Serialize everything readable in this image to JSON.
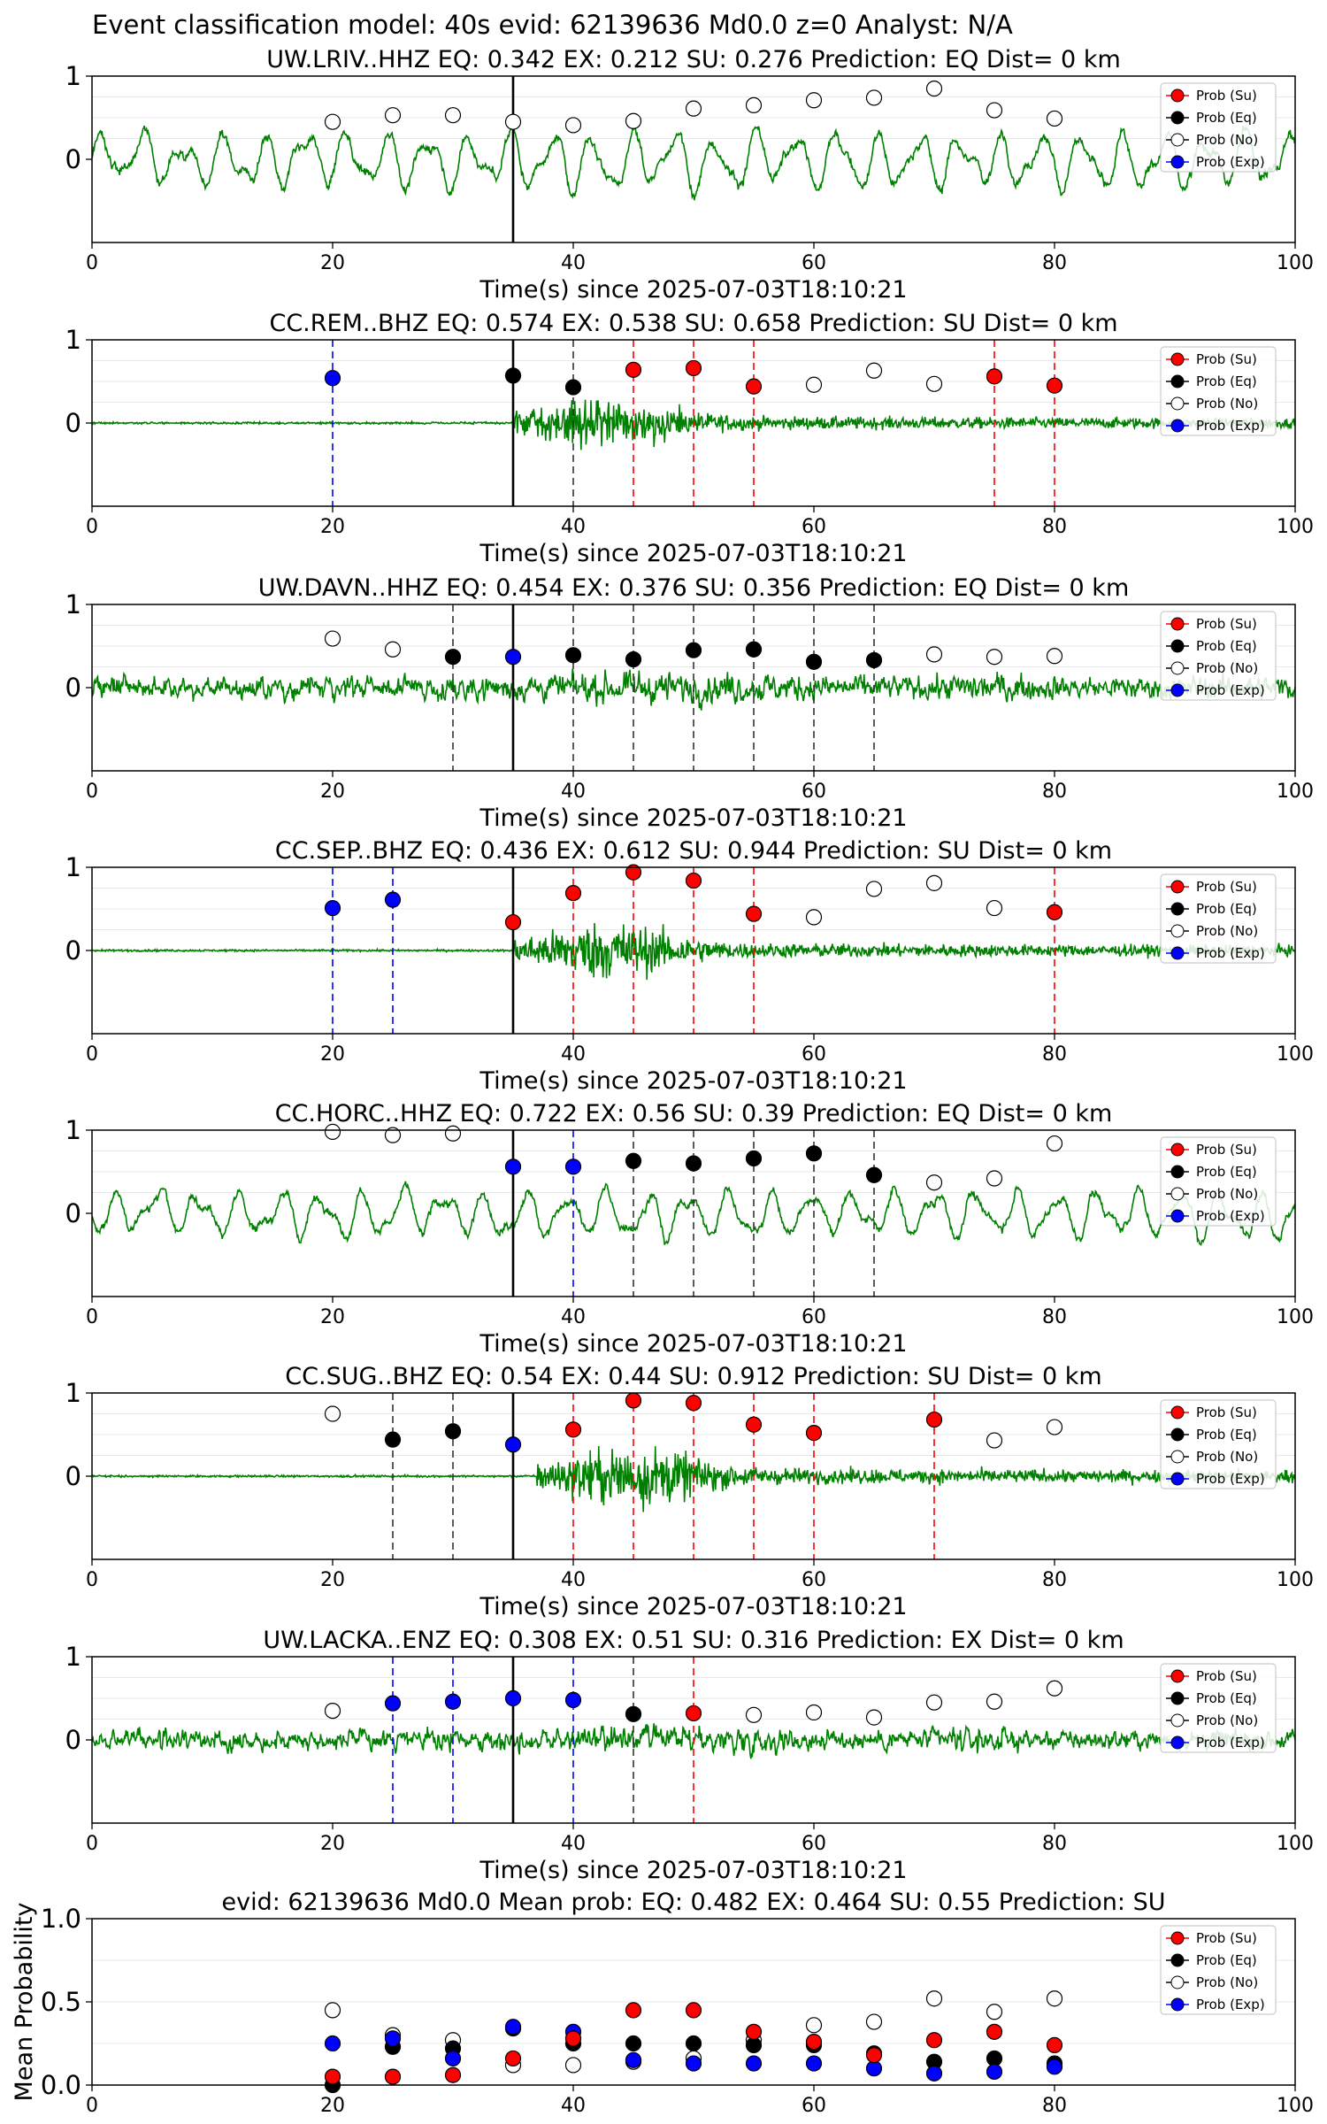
{
  "suptitle": "Event classification model: 40s evid: 62139636 Md0.0 z=0 Analyst: N/A",
  "legend": [
    {
      "label": "Prob (Su)",
      "fill": "#ff0000",
      "line": "#ff0000"
    },
    {
      "label": "Prob (Eq)",
      "fill": "#000000",
      "line": "#000000"
    },
    {
      "label": "Prob (No)",
      "fill": "#ffffff",
      "line": "#000000"
    },
    {
      "label": "Prob (Exp)",
      "fill": "#0000ff",
      "line": "#0000ff"
    }
  ],
  "colors": {
    "su": "#ff0000",
    "eq": "#000000",
    "no": "#ffffff",
    "exp": "#0000ff",
    "waveform": "#008000",
    "grid": "#e8e8e8"
  },
  "chart_data": [
    {
      "type": "scatter",
      "title": "UW.LRIV..HHZ   EQ: 0.342  EX: 0.212  SU: 0.276   Prediction: EQ    Dist= 0 km",
      "xlabel": "Time(s) since 2025-07-03T18:10:21",
      "xlim": [
        0,
        100
      ],
      "ylim": [
        -1,
        1
      ],
      "xticks": [
        "0",
        "20",
        "40",
        "60",
        "80",
        "100"
      ],
      "yticks": [
        "0",
        "1"
      ],
      "waveform": {
        "style": "smooth",
        "amp": 0.45,
        "onset": 0
      },
      "pick_time": 35,
      "points": [
        {
          "t": 20,
          "p": 0.45,
          "c": "no"
        },
        {
          "t": 25,
          "p": 0.53,
          "c": "no"
        },
        {
          "t": 30,
          "p": 0.53,
          "c": "no"
        },
        {
          "t": 35,
          "p": 0.45,
          "c": "no"
        },
        {
          "t": 40,
          "p": 0.41,
          "c": "no"
        },
        {
          "t": 45,
          "p": 0.46,
          "c": "no"
        },
        {
          "t": 50,
          "p": 0.61,
          "c": "no"
        },
        {
          "t": 55,
          "p": 0.65,
          "c": "no"
        },
        {
          "t": 60,
          "p": 0.71,
          "c": "no"
        },
        {
          "t": 65,
          "p": 0.74,
          "c": "no"
        },
        {
          "t": 70,
          "p": 0.85,
          "c": "no"
        },
        {
          "t": 75,
          "p": 0.59,
          "c": "no"
        },
        {
          "t": 80,
          "p": 0.49,
          "c": "no"
        }
      ]
    },
    {
      "type": "scatter",
      "title": "CC.REM..BHZ   EQ: 0.574  EX: 0.538  SU: 0.658   Prediction: SU    Dist= 0 km",
      "xlabel": "Time(s) since 2025-07-03T18:10:21",
      "xlim": [
        0,
        100
      ],
      "ylim": [
        -1,
        1
      ],
      "xticks": [
        "0",
        "20",
        "40",
        "60",
        "80",
        "100"
      ],
      "yticks": [
        "0",
        "1"
      ],
      "waveform": {
        "style": "burst",
        "amp": 0.6,
        "onset": 35
      },
      "pick_time": 35,
      "points": [
        {
          "t": 20,
          "p": 0.54,
          "c": "exp"
        },
        {
          "t": 35,
          "p": 0.57,
          "c": "eq"
        },
        {
          "t": 40,
          "p": 0.43,
          "c": "eq"
        },
        {
          "t": 45,
          "p": 0.64,
          "c": "su"
        },
        {
          "t": 50,
          "p": 0.66,
          "c": "su"
        },
        {
          "t": 55,
          "p": 0.44,
          "c": "su"
        },
        {
          "t": 60,
          "p": 0.46,
          "c": "no"
        },
        {
          "t": 65,
          "p": 0.63,
          "c": "no"
        },
        {
          "t": 70,
          "p": 0.47,
          "c": "no"
        },
        {
          "t": 75,
          "p": 0.56,
          "c": "su"
        },
        {
          "t": 80,
          "p": 0.45,
          "c": "su"
        }
      ]
    },
    {
      "type": "scatter",
      "title": "UW.DAVN..HHZ   EQ: 0.454  EX: 0.376  SU: 0.356   Prediction: EQ    Dist= 0 km",
      "xlabel": "Time(s) since 2025-07-03T18:10:21",
      "xlim": [
        0,
        100
      ],
      "ylim": [
        -1,
        1
      ],
      "xticks": [
        "0",
        "20",
        "40",
        "60",
        "80",
        "100"
      ],
      "yticks": [
        "0",
        "1"
      ],
      "waveform": {
        "style": "noisy",
        "amp": 0.35,
        "onset": 0
      },
      "pick_time": 35,
      "points": [
        {
          "t": 20,
          "p": 0.59,
          "c": "no"
        },
        {
          "t": 25,
          "p": 0.46,
          "c": "no"
        },
        {
          "t": 30,
          "p": 0.37,
          "c": "eq"
        },
        {
          "t": 35,
          "p": 0.37,
          "c": "exp"
        },
        {
          "t": 40,
          "p": 0.39,
          "c": "eq"
        },
        {
          "t": 45,
          "p": 0.34,
          "c": "eq"
        },
        {
          "t": 50,
          "p": 0.45,
          "c": "eq"
        },
        {
          "t": 55,
          "p": 0.46,
          "c": "eq"
        },
        {
          "t": 60,
          "p": 0.31,
          "c": "eq"
        },
        {
          "t": 65,
          "p": 0.33,
          "c": "eq"
        },
        {
          "t": 70,
          "p": 0.4,
          "c": "no"
        },
        {
          "t": 75,
          "p": 0.37,
          "c": "no"
        },
        {
          "t": 80,
          "p": 0.38,
          "c": "no"
        }
      ]
    },
    {
      "type": "scatter",
      "title": "CC.SEP..BHZ   EQ: 0.436  EX: 0.612  SU: 0.944   Prediction: SU    Dist= 0 km",
      "xlabel": "Time(s) since 2025-07-03T18:10:21",
      "xlim": [
        0,
        100
      ],
      "ylim": [
        -1,
        1
      ],
      "xticks": [
        "0",
        "20",
        "40",
        "60",
        "80",
        "100"
      ],
      "yticks": [
        "0",
        "1"
      ],
      "waveform": {
        "style": "burst",
        "amp": 0.65,
        "onset": 35
      },
      "pick_time": 35,
      "points": [
        {
          "t": 20,
          "p": 0.51,
          "c": "exp"
        },
        {
          "t": 25,
          "p": 0.61,
          "c": "exp"
        },
        {
          "t": 35,
          "p": 0.34,
          "c": "su"
        },
        {
          "t": 40,
          "p": 0.69,
          "c": "su"
        },
        {
          "t": 45,
          "p": 0.94,
          "c": "su"
        },
        {
          "t": 50,
          "p": 0.84,
          "c": "su"
        },
        {
          "t": 55,
          "p": 0.44,
          "c": "su"
        },
        {
          "t": 60,
          "p": 0.4,
          "c": "no"
        },
        {
          "t": 65,
          "p": 0.74,
          "c": "no"
        },
        {
          "t": 70,
          "p": 0.81,
          "c": "no"
        },
        {
          "t": 75,
          "p": 0.51,
          "c": "no"
        },
        {
          "t": 80,
          "p": 0.46,
          "c": "su"
        }
      ]
    },
    {
      "type": "scatter",
      "title": "CC.HORC..HHZ   EQ: 0.722  EX: 0.56  SU: 0.39   Prediction: EQ    Dist= 0 km",
      "xlabel": "Time(s) since 2025-07-03T18:10:21",
      "xlim": [
        0,
        100
      ],
      "ylim": [
        -1,
        1
      ],
      "xticks": [
        "0",
        "20",
        "40",
        "60",
        "80",
        "100"
      ],
      "yticks": [
        "0",
        "1"
      ],
      "waveform": {
        "style": "smooth",
        "amp": 0.38,
        "onset": 0
      },
      "pick_time": 35,
      "points": [
        {
          "t": 20,
          "p": 0.98,
          "c": "no"
        },
        {
          "t": 25,
          "p": 0.94,
          "c": "no"
        },
        {
          "t": 30,
          "p": 0.96,
          "c": "no"
        },
        {
          "t": 35,
          "p": 0.56,
          "c": "exp"
        },
        {
          "t": 40,
          "p": 0.56,
          "c": "exp"
        },
        {
          "t": 45,
          "p": 0.63,
          "c": "eq"
        },
        {
          "t": 50,
          "p": 0.6,
          "c": "eq"
        },
        {
          "t": 55,
          "p": 0.66,
          "c": "eq"
        },
        {
          "t": 60,
          "p": 0.72,
          "c": "eq"
        },
        {
          "t": 65,
          "p": 0.46,
          "c": "eq"
        },
        {
          "t": 70,
          "p": 0.37,
          "c": "no"
        },
        {
          "t": 75,
          "p": 0.42,
          "c": "no"
        },
        {
          "t": 80,
          "p": 0.84,
          "c": "no"
        }
      ]
    },
    {
      "type": "scatter",
      "title": "CC.SUG..BHZ   EQ: 0.54  EX: 0.44  SU: 0.912   Prediction: SU    Dist= 0 km",
      "xlabel": "Time(s) since 2025-07-03T18:10:21",
      "xlim": [
        0,
        100
      ],
      "ylim": [
        -1,
        1
      ],
      "xticks": [
        "0",
        "20",
        "40",
        "60",
        "80",
        "100"
      ],
      "yticks": [
        "0",
        "1"
      ],
      "waveform": {
        "style": "burst",
        "amp": 0.7,
        "onset": 37
      },
      "pick_time": 35,
      "points": [
        {
          "t": 20,
          "p": 0.75,
          "c": "no"
        },
        {
          "t": 25,
          "p": 0.44,
          "c": "eq"
        },
        {
          "t": 30,
          "p": 0.54,
          "c": "eq"
        },
        {
          "t": 35,
          "p": 0.38,
          "c": "exp"
        },
        {
          "t": 40,
          "p": 0.56,
          "c": "su"
        },
        {
          "t": 45,
          "p": 0.91,
          "c": "su"
        },
        {
          "t": 50,
          "p": 0.88,
          "c": "su"
        },
        {
          "t": 55,
          "p": 0.62,
          "c": "su"
        },
        {
          "t": 60,
          "p": 0.52,
          "c": "su"
        },
        {
          "t": 70,
          "p": 0.68,
          "c": "su"
        },
        {
          "t": 75,
          "p": 0.43,
          "c": "no"
        },
        {
          "t": 80,
          "p": 0.59,
          "c": "no"
        }
      ]
    },
    {
      "type": "scatter",
      "title": "UW.LACKA..ENZ   EQ: 0.308  EX: 0.51  SU: 0.316   Prediction: EX    Dist= 0 km",
      "xlabel": "Time(s) since 2025-07-03T18:10:21",
      "xlim": [
        0,
        100
      ],
      "ylim": [
        -1,
        1
      ],
      "xticks": [
        "0",
        "20",
        "40",
        "60",
        "80",
        "100"
      ],
      "yticks": [
        "0",
        "1"
      ],
      "waveform": {
        "style": "noisy",
        "amp": 0.3,
        "onset": 0
      },
      "pick_time": 35,
      "points": [
        {
          "t": 20,
          "p": 0.35,
          "c": "no"
        },
        {
          "t": 25,
          "p": 0.44,
          "c": "exp"
        },
        {
          "t": 30,
          "p": 0.46,
          "c": "exp"
        },
        {
          "t": 35,
          "p": 0.5,
          "c": "exp"
        },
        {
          "t": 40,
          "p": 0.48,
          "c": "exp"
        },
        {
          "t": 45,
          "p": 0.31,
          "c": "eq"
        },
        {
          "t": 50,
          "p": 0.32,
          "c": "su"
        },
        {
          "t": 55,
          "p": 0.3,
          "c": "no"
        },
        {
          "t": 60,
          "p": 0.33,
          "c": "no"
        },
        {
          "t": 65,
          "p": 0.27,
          "c": "no"
        },
        {
          "t": 70,
          "p": 0.45,
          "c": "no"
        },
        {
          "t": 75,
          "p": 0.46,
          "c": "no"
        },
        {
          "t": 80,
          "p": 0.62,
          "c": "no"
        }
      ]
    },
    {
      "type": "scatter",
      "title": "evid: 62139636  Md0.0   Mean prob:   EQ: 0.482  EX: 0.464  SU: 0.55   Prediction: SU",
      "xlabel": "",
      "ylabel": "Mean Probability",
      "xlim": [
        0,
        100
      ],
      "ylim": [
        0,
        1
      ],
      "xticks": [
        "0",
        "20",
        "40",
        "60",
        "80",
        "100"
      ],
      "yticks": [
        "0.0",
        "0.5",
        "1.0"
      ],
      "x": [
        20,
        25,
        30,
        35,
        40,
        45,
        50,
        55,
        60,
        65,
        70,
        75,
        80
      ],
      "series": [
        {
          "key": "no",
          "values": [
            0.45,
            0.3,
            0.27,
            0.12,
            0.12,
            0.14,
            0.16,
            0.27,
            0.36,
            0.38,
            0.52,
            0.44,
            0.52
          ]
        },
        {
          "key": "eq",
          "values": [
            0.0,
            0.23,
            0.22,
            0.34,
            0.25,
            0.25,
            0.25,
            0.24,
            0.24,
            0.19,
            0.14,
            0.16,
            0.13
          ]
        },
        {
          "key": "exp",
          "values": [
            0.25,
            0.28,
            0.16,
            0.35,
            0.32,
            0.15,
            0.13,
            0.13,
            0.13,
            0.1,
            0.07,
            0.08,
            0.11
          ]
        },
        {
          "key": "su",
          "values": [
            0.05,
            0.05,
            0.06,
            0.16,
            0.28,
            0.45,
            0.45,
            0.32,
            0.26,
            0.18,
            0.27,
            0.32,
            0.24
          ]
        }
      ]
    }
  ]
}
